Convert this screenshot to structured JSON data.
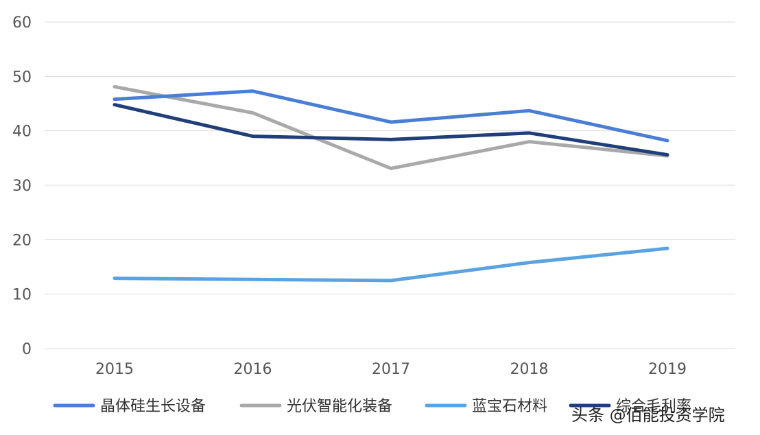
{
  "chart_data": {
    "type": "line",
    "title": "",
    "xlabel": "",
    "ylabel": "",
    "categories": [
      "2015",
      "2016",
      "2017",
      "2018",
      "2019"
    ],
    "ylim": [
      0,
      60
    ],
    "yticks": [
      "0",
      "10",
      "20",
      "30",
      "40",
      "50",
      "60"
    ],
    "grid": "horizontal",
    "legend_position": "bottom",
    "series": [
      {
        "name": "晶体硅生长设备",
        "color": "#4A7ED6",
        "values": [
          45.8,
          47.3,
          41.6,
          43.7,
          38.2
        ]
      },
      {
        "name": "光伏智能化装备",
        "color": "#A9A9A9",
        "values": [
          48.1,
          43.3,
          33.1,
          38.0,
          35.4
        ]
      },
      {
        "name": "蓝宝石材料",
        "color": "#5BA3E0",
        "values": [
          12.9,
          12.7,
          12.5,
          15.8,
          18.4
        ]
      },
      {
        "name": "综合毛利率",
        "color": "#1F3E7A",
        "values": [
          44.8,
          39.0,
          38.4,
          39.6,
          35.6
        ]
      }
    ]
  },
  "watermark": "头条 @佰能投资学院"
}
